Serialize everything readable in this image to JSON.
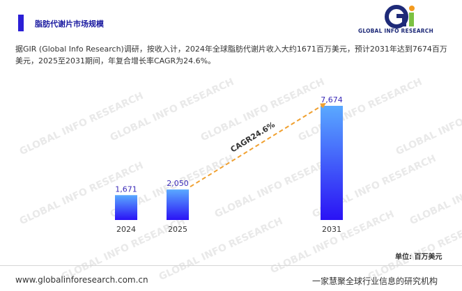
{
  "header": {
    "title": "脂肪代谢片市场规模"
  },
  "logo": {
    "text": "GLOBAL INFO RESEARCH",
    "colors": {
      "dark": "#1e2a78",
      "green": "#7cc242",
      "orange": "#f39a1e"
    }
  },
  "summary": {
    "line1": "据GIR (Global Info Research)调研，按收入计，2024年全球脂肪代谢片收入大约1671百万美元，预计2031年达到7674百万",
    "line2": "美元，2025至2031期间，年复合增长率CAGR为24.6%。"
  },
  "chart_data": {
    "type": "bar",
    "categories": [
      "2024",
      "2025",
      "2031"
    ],
    "values": [
      1671,
      2050,
      7674
    ],
    "value_labels": [
      "1,671",
      "2,050",
      "7,674"
    ],
    "annotation": "CAGR24.6%",
    "unit": "单位: 百万美元",
    "bar_color_top": "#5aa9ff",
    "bar_color_bottom": "#2a12f5",
    "value_label_color": "#3a2ab8",
    "trend_line_color": "#f0a030",
    "ylim": [
      0,
      7674
    ]
  },
  "footer": {
    "url": "www.globalinforesearch.com.cn",
    "slogan": "一家慧聚全球行业信息的研究机构"
  },
  "watermark": "GLOBAL INFO RESEARCH"
}
